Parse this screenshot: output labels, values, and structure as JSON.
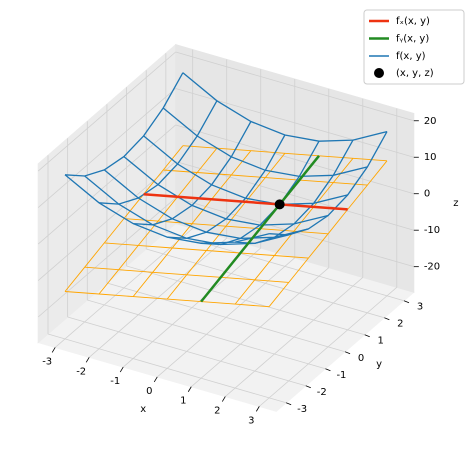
{
  "chart_data": {
    "type": "surface3d",
    "xlabel": "x",
    "ylabel": "y",
    "zlabel": "z",
    "xlim": [
      -3.5,
      3.5
    ],
    "ylim": [
      -3.5,
      3.5
    ],
    "zlim": [
      -27,
      22
    ],
    "xticks": [
      -3,
      -2,
      -1,
      0,
      1,
      2,
      3
    ],
    "yticks": [
      -3,
      -2,
      -1,
      0,
      1,
      2,
      3
    ],
    "zticks": [
      -20,
      -10,
      0,
      10,
      20
    ],
    "grid": true,
    "legend": "upper right",
    "surface": {
      "name": "f(x, y)",
      "color": "#1f77b4",
      "x": [
        -3,
        -2,
        -1,
        0,
        1,
        2,
        3
      ],
      "y": [
        -3,
        -2,
        -1,
        0,
        1,
        2,
        3
      ],
      "z": [
        [
          18,
          13,
          10,
          9,
          10,
          13,
          18
        ],
        [
          13,
          8,
          5,
          4,
          5,
          8,
          13
        ],
        [
          10,
          5,
          2,
          1,
          2,
          5,
          10
        ],
        [
          9,
          4,
          1,
          0,
          1,
          4,
          9
        ],
        [
          10,
          5,
          2,
          1,
          2,
          5,
          10
        ],
        [
          13,
          8,
          5,
          4,
          5,
          8,
          13
        ],
        [
          18,
          13,
          10,
          9,
          10,
          13,
          18
        ]
      ]
    },
    "plane": {
      "color": "#ffa500",
      "x": [
        -3,
        -2,
        -1,
        0,
        1,
        2,
        3
      ],
      "y": [
        -3,
        -2,
        -1,
        0,
        1,
        2,
        3
      ],
      "z": [
        [
          -14,
          -12,
          -10,
          -8,
          -6,
          -4,
          -2
        ],
        [
          -12,
          -10,
          -8,
          -6,
          -4,
          -2,
          0
        ],
        [
          -10,
          -8,
          -6,
          -4,
          -2,
          0,
          2
        ],
        [
          -8,
          -6,
          -4,
          -2,
          0,
          2,
          4
        ],
        [
          -6,
          -4,
          -2,
          0,
          2,
          4,
          6
        ],
        [
          -4,
          -2,
          0,
          2,
          4,
          6,
          8
        ],
        [
          -2,
          0,
          2,
          4,
          6,
          8,
          10
        ]
      ]
    },
    "lines": [
      {
        "name": "fₓ(x, y)",
        "color": "#ee3311",
        "x": [
          -3,
          3
        ],
        "y": [
          1,
          1
        ],
        "z": [
          -6,
          6
        ]
      },
      {
        "name": "fᵧ(x, y)",
        "color": "#228b22",
        "x": [
          1,
          1
        ],
        "y": [
          -3,
          3
        ],
        "z": [
          -6,
          6
        ]
      }
    ],
    "point": {
      "name": "(x, y, z)",
      "color": "#000000",
      "x": 1,
      "y": 1,
      "z": 2
    }
  }
}
